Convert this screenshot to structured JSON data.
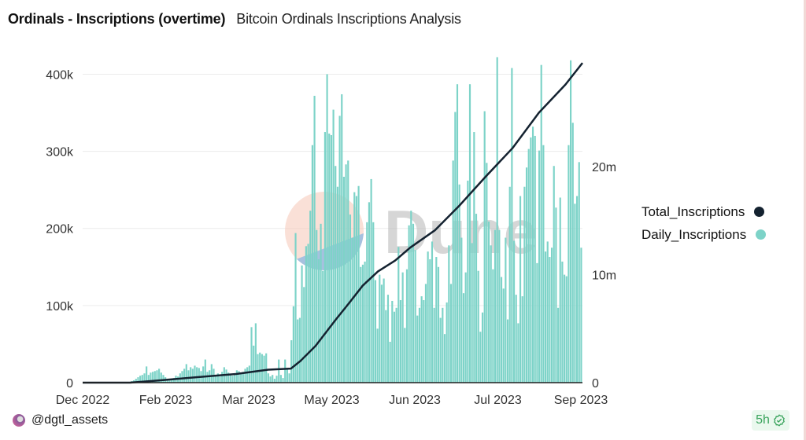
{
  "header": {
    "title": "Ordinals - Inscriptions (overtime)",
    "subtitle": "Bitcoin Ordinals Inscriptions Analysis"
  },
  "watermark": {
    "text": "Dune"
  },
  "footer": {
    "user": "@dgtl_assets",
    "age_badge": "5h",
    "badge_icon": "check-circle-icon"
  },
  "colors": {
    "daily": "#7dd3c8",
    "total": "#142230",
    "badge": "#39a35c",
    "grid": "#ececec"
  },
  "chart_data": {
    "type": "bar+line",
    "title": "",
    "xlim": [
      "2022-12-14",
      "2023-09-04"
    ],
    "x_tick_labels": [
      "Dec 2022",
      "Feb 2023",
      "Mar 2023",
      "May 2023",
      "Jun 2023",
      "Jul 2023",
      "Sep 2023"
    ],
    "y_left": {
      "lim": [
        0,
        430000
      ],
      "ticks": [
        0,
        100000,
        200000,
        300000,
        400000
      ],
      "tick_labels": [
        "0",
        "100k",
        "200k",
        "300k",
        "400k"
      ]
    },
    "y_right": {
      "lim": [
        0,
        30700000
      ],
      "ticks": [
        0,
        10000000,
        20000000
      ],
      "tick_labels": [
        "0",
        "10m",
        "20m"
      ]
    },
    "grid": true,
    "legend_position": "right",
    "legend": [
      "Total_Inscriptions",
      "Daily_Inscriptions"
    ],
    "series": [
      {
        "name": "Daily_Inscriptions",
        "type": "bar",
        "axis": "left",
        "values": [
          0,
          0,
          0,
          0,
          0,
          0,
          0,
          0,
          0,
          0,
          0,
          0,
          0,
          0,
          0,
          0,
          0,
          0,
          0,
          0,
          0,
          0,
          1000,
          2000,
          3000,
          5000,
          7000,
          9000,
          10000,
          12000,
          21000,
          10000,
          13000,
          14000,
          15000,
          16000,
          18000,
          13000,
          10000,
          7000,
          5000,
          3000,
          5000,
          6000,
          9000,
          8000,
          12000,
          15000,
          18000,
          24000,
          16000,
          20000,
          18000,
          22000,
          20000,
          19000,
          15000,
          21000,
          30000,
          14000,
          16000,
          24000,
          18000,
          10000,
          12000,
          8000,
          14000,
          20000,
          17000,
          13000,
          11000,
          9000,
          12000,
          16000,
          15000,
          12000,
          14000,
          18000,
          20000,
          22000,
          72000,
          48000,
          77000,
          37000,
          39000,
          37000,
          35000,
          38000,
          12000,
          8000,
          10000,
          5000,
          9000,
          30000,
          10000,
          6000,
          30000,
          17000,
          12000,
          55000,
          99000,
          194000,
          82000,
          84000,
          152000,
          124000,
          177000,
          180000,
          223000,
          308000,
          372000,
          198000,
          160000,
          206000,
          145000,
          325000,
          400000,
          323000,
          321000,
          354000,
          281000,
          254000,
          346000,
          374000,
          267000,
          283000,
          288000,
          218000,
          188000,
          247000,
          242000,
          255000,
          150000,
          153000,
          157000,
          208000,
          234000,
          264000,
          208000,
          133000,
          70000,
          140000,
          127000,
          135000,
          94000,
          114000,
          53000,
          106000,
          92000,
          97000,
          176000,
          107000,
          143000,
          71000,
          147000,
          204000,
          223000,
          206000,
          172000,
          87000,
          97000,
          112000,
          107000,
          128000,
          170000,
          160000,
          183000,
          97000,
          163000,
          150000,
          84000,
          97000,
          63000,
          104000,
          178000,
          128000,
          288000,
          351000,
          387000,
          257000,
          188000,
          116000,
          143000,
          262000,
          387000,
          181000,
          325000,
          219000,
          145000,
          66000,
          91000,
          352000,
          285000,
          209000,
          178000,
          147000,
          198000,
          422000,
          198000,
          137000,
          122000,
          188000,
          82000,
          254000,
          408000,
          184000,
          114000,
          77000,
          242000,
          112000,
          254000,
          279000,
          303000,
          318000,
          332000,
          320000,
          155000,
          301000,
          412000,
          308000,
          170000,
          183000,
          163000,
          175000,
          281000,
          227000,
          97000,
          240000,
          157000,
          140000,
          138000,
          308000,
          418000,
          337000,
          232000,
          242000,
          286000,
          175000
        ]
      },
      {
        "name": "Total_Inscriptions",
        "type": "line",
        "axis": "right",
        "points": [
          [
            "2022-12-14",
            0
          ],
          [
            "2023-01-08",
            0
          ],
          [
            "2023-01-23",
            200000
          ],
          [
            "2023-02-12",
            500000
          ],
          [
            "2023-03-05",
            800000
          ],
          [
            "2023-03-22",
            1200000
          ],
          [
            "2023-04-03",
            1300000
          ],
          [
            "2023-04-08",
            2000000
          ],
          [
            "2023-04-16",
            3400000
          ],
          [
            "2023-04-27",
            5900000
          ],
          [
            "2023-05-03",
            7200000
          ],
          [
            "2023-05-11",
            9000000
          ],
          [
            "2023-05-19",
            10300000
          ],
          [
            "2023-05-28",
            11300000
          ],
          [
            "2023-06-05",
            12500000
          ],
          [
            "2023-06-18",
            14100000
          ],
          [
            "2023-07-01",
            16400000
          ],
          [
            "2023-07-15",
            19100000
          ],
          [
            "2023-07-29",
            21700000
          ],
          [
            "2023-08-12",
            25000000
          ],
          [
            "2023-08-26",
            27600000
          ],
          [
            "2023-09-04",
            29600000
          ]
        ]
      }
    ]
  }
}
